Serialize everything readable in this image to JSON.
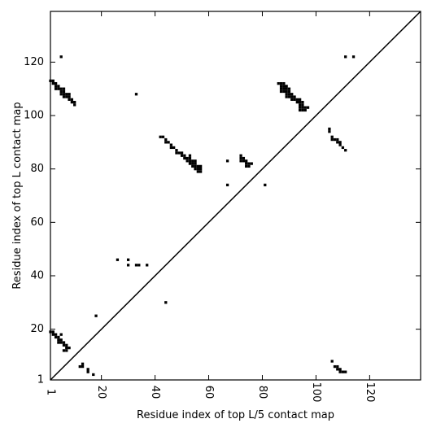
{
  "chart_data": {
    "type": "scatter",
    "title": "",
    "xlabel": "Residue index of top L/5 contact map",
    "ylabel": "Residue index of top L contact map",
    "xlim": [
      1,
      139
    ],
    "ylim": [
      1,
      139
    ],
    "xticks": [
      1,
      20,
      40,
      60,
      80,
      100,
      120
    ],
    "yticks": [
      1,
      20,
      40,
      60,
      80,
      100,
      120
    ],
    "marker_color": "#000000",
    "diagonal": {
      "from": [
        1,
        1
      ],
      "to": [
        139,
        139
      ]
    },
    "grid": false,
    "legend": "none",
    "series": [
      {
        "points": [
          [
            1,
            19
          ],
          [
            2,
            19
          ],
          [
            2,
            18
          ],
          [
            3,
            18
          ],
          [
            3,
            17
          ],
          [
            4,
            17
          ],
          [
            4,
            16
          ],
          [
            4,
            15
          ],
          [
            5,
            16
          ],
          [
            5,
            15
          ],
          [
            5,
            18
          ],
          [
            6,
            15
          ],
          [
            6,
            14
          ],
          [
            6,
            12
          ],
          [
            7,
            14
          ],
          [
            7,
            13
          ],
          [
            7,
            12
          ],
          [
            8,
            13
          ],
          [
            12,
            6
          ],
          [
            13,
            6
          ],
          [
            13,
            7
          ],
          [
            15,
            5
          ],
          [
            15,
            4
          ],
          [
            17,
            3
          ],
          [
            18,
            25
          ],
          [
            106,
            8
          ],
          [
            107,
            6
          ],
          [
            108,
            6
          ],
          [
            108,
            5
          ],
          [
            109,
            5
          ],
          [
            109,
            4
          ],
          [
            110,
            4
          ],
          [
            111,
            4
          ]
        ]
      },
      {
        "points": [
          [
            1,
            113
          ],
          [
            2,
            113
          ],
          [
            2,
            112
          ],
          [
            3,
            112
          ],
          [
            3,
            111
          ],
          [
            3,
            110
          ],
          [
            4,
            111
          ],
          [
            4,
            110
          ],
          [
            5,
            110
          ],
          [
            5,
            109
          ],
          [
            5,
            108
          ],
          [
            6,
            110
          ],
          [
            6,
            109
          ],
          [
            6,
            108
          ],
          [
            6,
            107
          ],
          [
            7,
            108
          ],
          [
            7,
            107
          ],
          [
            8,
            108
          ],
          [
            8,
            107
          ],
          [
            8,
            106
          ],
          [
            9,
            106
          ],
          [
            9,
            105
          ],
          [
            10,
            105
          ],
          [
            10,
            104
          ],
          [
            5,
            122
          ],
          [
            26,
            46
          ],
          [
            30,
            46
          ],
          [
            30,
            44
          ],
          [
            33,
            44
          ],
          [
            34,
            44
          ],
          [
            37,
            44
          ],
          [
            33,
            108
          ],
          [
            44,
            30
          ],
          [
            42,
            92
          ],
          [
            43,
            92
          ],
          [
            44,
            91
          ],
          [
            44,
            90
          ],
          [
            45,
            90
          ],
          [
            46,
            89
          ],
          [
            46,
            88
          ],
          [
            47,
            88
          ],
          [
            48,
            87
          ],
          [
            48,
            86
          ],
          [
            49,
            86
          ],
          [
            50,
            86
          ],
          [
            50,
            85
          ],
          [
            51,
            85
          ],
          [
            51,
            84
          ],
          [
            52,
            84
          ],
          [
            52,
            83
          ],
          [
            53,
            84
          ],
          [
            53,
            83
          ],
          [
            53,
            82
          ],
          [
            54,
            83
          ],
          [
            54,
            82
          ],
          [
            54,
            81
          ],
          [
            55,
            82
          ],
          [
            55,
            81
          ],
          [
            55,
            80
          ],
          [
            56,
            81
          ],
          [
            56,
            80
          ],
          [
            56,
            79
          ],
          [
            57,
            80
          ],
          [
            57,
            79
          ],
          [
            57,
            81
          ],
          [
            55,
            83
          ],
          [
            53,
            85
          ],
          [
            67,
            83
          ],
          [
            67,
            74
          ],
          [
            72,
            85
          ],
          [
            72,
            84
          ],
          [
            72,
            83
          ],
          [
            73,
            84
          ],
          [
            73,
            83
          ],
          [
            74,
            83
          ],
          [
            74,
            82
          ],
          [
            74,
            81
          ],
          [
            75,
            82
          ],
          [
            75,
            81
          ],
          [
            76,
            82
          ],
          [
            81,
            74
          ],
          [
            86,
            112
          ],
          [
            87,
            112
          ],
          [
            87,
            111
          ],
          [
            87,
            110
          ],
          [
            87,
            109
          ],
          [
            88,
            112
          ],
          [
            88,
            111
          ],
          [
            88,
            110
          ],
          [
            88,
            109
          ],
          [
            89,
            111
          ],
          [
            89,
            110
          ],
          [
            89,
            109
          ],
          [
            89,
            108
          ],
          [
            89,
            107
          ],
          [
            90,
            110
          ],
          [
            90,
            109
          ],
          [
            90,
            108
          ],
          [
            90,
            107
          ],
          [
            91,
            108
          ],
          [
            91,
            107
          ],
          [
            91,
            106
          ],
          [
            92,
            107
          ],
          [
            92,
            106
          ],
          [
            93,
            106
          ],
          [
            93,
            105
          ],
          [
            94,
            106
          ],
          [
            94,
            105
          ],
          [
            94,
            104
          ],
          [
            94,
            103
          ],
          [
            94,
            102
          ],
          [
            95,
            105
          ],
          [
            95,
            104
          ],
          [
            95,
            103
          ],
          [
            95,
            102
          ],
          [
            96,
            103
          ],
          [
            96,
            102
          ],
          [
            97,
            103
          ],
          [
            105,
            95
          ],
          [
            105,
            94
          ],
          [
            106,
            92
          ],
          [
            106,
            91
          ],
          [
            107,
            91
          ],
          [
            108,
            91
          ],
          [
            108,
            90
          ],
          [
            109,
            90
          ],
          [
            109,
            89
          ],
          [
            110,
            88
          ],
          [
            111,
            87
          ],
          [
            111,
            122
          ],
          [
            114,
            122
          ]
        ]
      }
    ]
  }
}
